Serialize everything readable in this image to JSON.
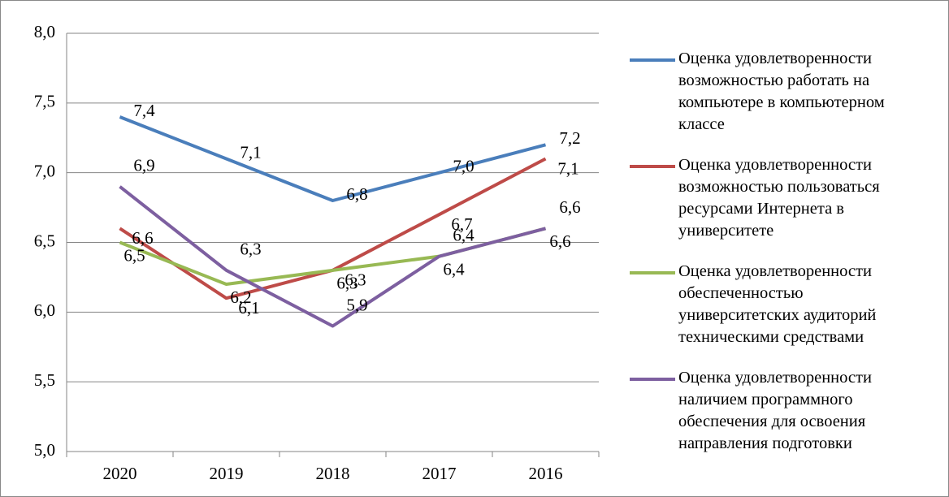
{
  "chart_data": {
    "type": "line",
    "categories": [
      "2020",
      "2019",
      "2018",
      "2017",
      "2016"
    ],
    "series": [
      {
        "name": "Оценка удовлетворенности возможностью работать на компьютере в компьютерном классе",
        "color": "#4a7ebb",
        "values": [
          7.4,
          7.1,
          6.8,
          7.0,
          7.2
        ],
        "value_labels": [
          "7,4",
          "7,1",
          "6,8",
          "7,0",
          "7,2"
        ]
      },
      {
        "name": "Оценка удовлетворенности возможностью пользоваться ресурсами Интернета в университете",
        "color": "#be4b48",
        "values": [
          6.6,
          6.1,
          6.3,
          6.7,
          7.1
        ],
        "value_labels": [
          "6,6",
          "6,1",
          "6,3",
          "6,7",
          "7,1"
        ]
      },
      {
        "name": "Оценка удовлетворенности обеспеченностью университетских аудиторий техническими средствами",
        "color": "#98b954",
        "values": [
          6.5,
          6.2,
          6.3,
          6.4,
          6.6
        ],
        "value_labels": [
          "6,5",
          "6,2",
          "6,3",
          "6,4",
          "6,6"
        ]
      },
      {
        "name": "Оценка удовлетворенности наличием программного обеспечения для освоения направления подготовки",
        "color": "#7d5fa0",
        "values": [
          6.9,
          6.3,
          5.9,
          6.4,
          6.6
        ],
        "value_labels": [
          "6,9",
          "6,3",
          "5,9",
          "6,4",
          "6,6"
        ]
      }
    ],
    "ylim": [
      5.0,
      8.0
    ],
    "yticks": [
      {
        "value": 5.0,
        "label": "5,0"
      },
      {
        "value": 5.5,
        "label": "5,5"
      },
      {
        "value": 6.0,
        "label": "6,0"
      },
      {
        "value": 6.5,
        "label": "6,5"
      },
      {
        "value": 7.0,
        "label": "7,0"
      },
      {
        "value": 7.5,
        "label": "7,5"
      },
      {
        "value": 8.0,
        "label": "8,0"
      }
    ],
    "grid": true,
    "legend": "right"
  }
}
